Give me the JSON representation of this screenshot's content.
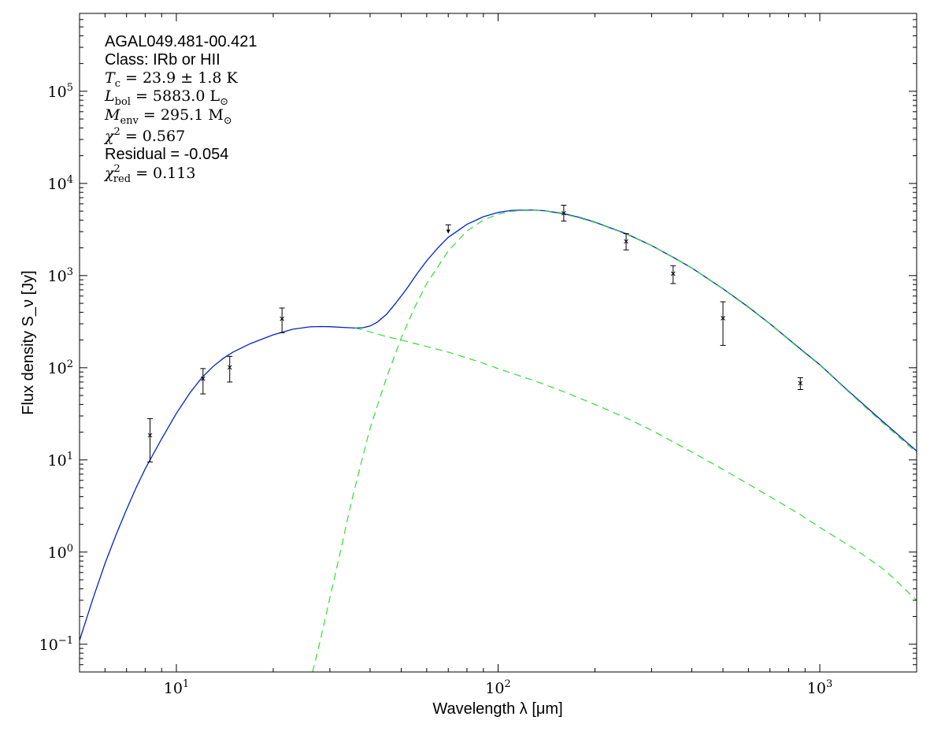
{
  "chart_data": {
    "type": "line",
    "xscale": "log",
    "yscale": "log",
    "xlim": [
      5,
      2000
    ],
    "ylim": [
      0.05,
      700000
    ],
    "xlabel": "Wavelength λ [μm]",
    "ylabel": "Flux density S_ν [Jy]",
    "x_ticks": [
      {
        "value": 10,
        "base": "10",
        "exp": "1"
      },
      {
        "value": 100,
        "base": "10",
        "exp": "2"
      },
      {
        "value": 1000,
        "base": "10",
        "exp": "3"
      }
    ],
    "y_ticks": [
      {
        "value": 0.1,
        "base": "10",
        "exp": "−1"
      },
      {
        "value": 1,
        "base": "10",
        "exp": "0"
      },
      {
        "value": 10,
        "base": "10",
        "exp": "1"
      },
      {
        "value": 100,
        "base": "10",
        "exp": "2"
      },
      {
        "value": 1000,
        "base": "10",
        "exp": "3"
      },
      {
        "value": 10000,
        "base": "10",
        "exp": "4"
      },
      {
        "value": 100000,
        "base": "10",
        "exp": "5"
      }
    ],
    "annotations": {
      "source": "AGAL049.481-00.421",
      "class_line": "Class: IRb or HII",
      "tc": {
        "sym": "T",
        "sub": "c",
        "rest": " = 23.9 ± 1.8 K"
      },
      "lbol": {
        "sym": "L",
        "sub": "bol",
        "rest": " = 5883.0 L",
        "unitsub": "⊙"
      },
      "menv": {
        "sym": "M",
        "sub": "env",
        "rest": " = 295.1 M",
        "unitsub": "⊙"
      },
      "chi2": {
        "sym": "χ",
        "sup": "2",
        "rest": " = 0.567"
      },
      "residual": "Residual = -0.054",
      "chi2red": {
        "sym": "χ",
        "sup": "2",
        "sub": "red",
        "rest": " = 0.113"
      }
    },
    "colors": {
      "total_fit": "#0022cc",
      "components": "#33dd33",
      "data": "#000000"
    },
    "data_points": [
      {
        "x": 8.28,
        "y": 18.5,
        "ylo": 9.5,
        "yhi": 28
      },
      {
        "x": 12.1,
        "y": 76,
        "ylo": 52,
        "yhi": 98
      },
      {
        "x": 14.65,
        "y": 101,
        "ylo": 70,
        "yhi": 133
      },
      {
        "x": 21.3,
        "y": 340,
        "ylo": 240,
        "yhi": 445
      },
      {
        "x": 160,
        "y": 4750,
        "ylo": 3900,
        "yhi": 5800
      },
      {
        "x": 250,
        "y": 2350,
        "ylo": 1900,
        "yhi": 2850
      },
      {
        "x": 350,
        "y": 1050,
        "ylo": 820,
        "yhi": 1280
      },
      {
        "x": 500,
        "y": 345,
        "ylo": 175,
        "yhi": 520
      },
      {
        "x": 870,
        "y": 68,
        "ylo": 58,
        "yhi": 78
      }
    ],
    "upper_limits": [
      {
        "x": 70,
        "y": 3550
      }
    ],
    "series": [
      {
        "style": "solid",
        "x": [
          5,
          5.5,
          6,
          6.5,
          7,
          7.5,
          8,
          9,
          10,
          11,
          12,
          13,
          14,
          15,
          17,
          20,
          23,
          26,
          28,
          30,
          33,
          36,
          38,
          40,
          42,
          45,
          48,
          52,
          56,
          60,
          65,
          70,
          80,
          90,
          100,
          110,
          120,
          130,
          140,
          160,
          180,
          200,
          250,
          300,
          350,
          400,
          500,
          600,
          700,
          870,
          1000,
          1200,
          1500,
          2000
        ],
        "y": [
          0.11,
          0.31,
          0.75,
          1.55,
          2.9,
          5.0,
          8.0,
          17,
          32,
          53,
          78,
          103,
          127,
          148,
          183,
          228,
          262,
          278,
          280,
          279,
          274,
          270,
          272,
          284,
          310,
          380,
          500,
          720,
          1050,
          1450,
          2000,
          2600,
          3600,
          4350,
          4850,
          5100,
          5150,
          5150,
          5050,
          4700,
          4250,
          3800,
          2850,
          2120,
          1580,
          1210,
          720,
          455,
          300,
          160,
          108,
          60,
          30,
          12.5
        ]
      },
      {
        "style": "dashed",
        "x": [
          36,
          40,
          45,
          50,
          60,
          70,
          80,
          90,
          100,
          130,
          160,
          200,
          250,
          300,
          400,
          500,
          700,
          870,
          1000,
          1300,
          1600,
          2000
        ],
        "y": [
          270,
          245,
          218,
          200,
          170,
          148,
          128,
          112,
          98,
          72,
          55,
          40,
          28.5,
          21,
          12.2,
          7.9,
          4.0,
          2.55,
          1.85,
          1.05,
          0.63,
          0.3
        ]
      },
      {
        "style": "dashed",
        "x": [
          26.5,
          28,
          30,
          32,
          35,
          38,
          40,
          45,
          50,
          55,
          60,
          70,
          80,
          90,
          100,
          110,
          120,
          130,
          140,
          160,
          180,
          200,
          250,
          300,
          350,
          400,
          500,
          600,
          700,
          870,
          1000,
          1200,
          1500,
          2000
        ],
        "y": [
          0.05,
          0.11,
          0.32,
          0.85,
          3.5,
          11,
          22,
          78,
          210,
          450,
          820,
          1850,
          3050,
          4000,
          4650,
          4980,
          5100,
          5120,
          5020,
          4650,
          4200,
          3760,
          2830,
          2110,
          1570,
          1205,
          715,
          450,
          298,
          158,
          107,
          59,
          29,
          12
        ]
      }
    ]
  }
}
